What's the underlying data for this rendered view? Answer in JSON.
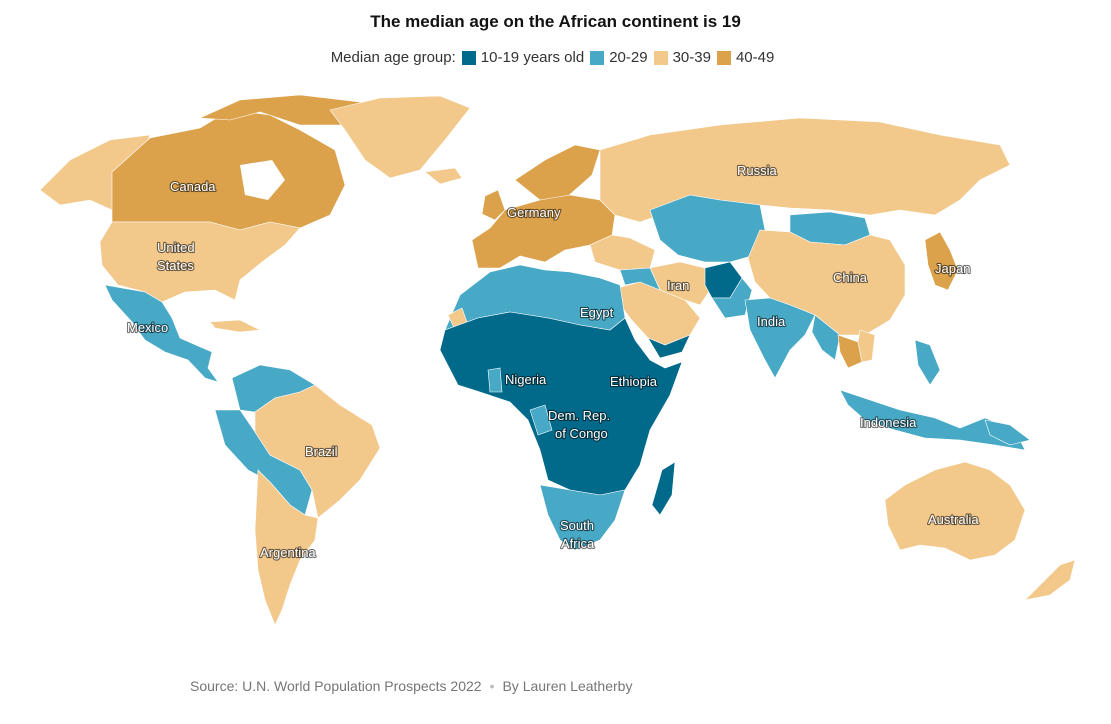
{
  "title": "The median age on the African continent is 19",
  "legend": {
    "prefix": "Median age group:",
    "items": [
      {
        "label": "10-19 years old",
        "color": "#01698a"
      },
      {
        "label": "20-29",
        "color": "#47a9c5"
      },
      {
        "label": "30-39",
        "color": "#f2c88b"
      },
      {
        "label": "40-49",
        "color": "#dba24b"
      }
    ]
  },
  "labels": {
    "canada": "Canada",
    "united_states_line1": "United",
    "united_states_line2": "States",
    "mexico": "Mexico",
    "brazil": "Brazil",
    "argentina": "Argentina",
    "germany": "Germany",
    "russia": "Russia",
    "egypt": "Egypt",
    "iran": "Iran",
    "china": "China",
    "japan": "Japan",
    "india": "India",
    "nigeria": "Nigeria",
    "ethiopia": "Ethiopia",
    "drc_line1": "Dem. Rep.",
    "drc_line2": "of Congo",
    "south_africa_line1": "South",
    "south_africa_line2": "Africa",
    "indonesia": "Indonesia",
    "australia": "Australia"
  },
  "footer": {
    "source": "Source: U.N. World Population Prospects 2022",
    "separator": "•",
    "byline": "By Lauren Leatherby"
  }
}
